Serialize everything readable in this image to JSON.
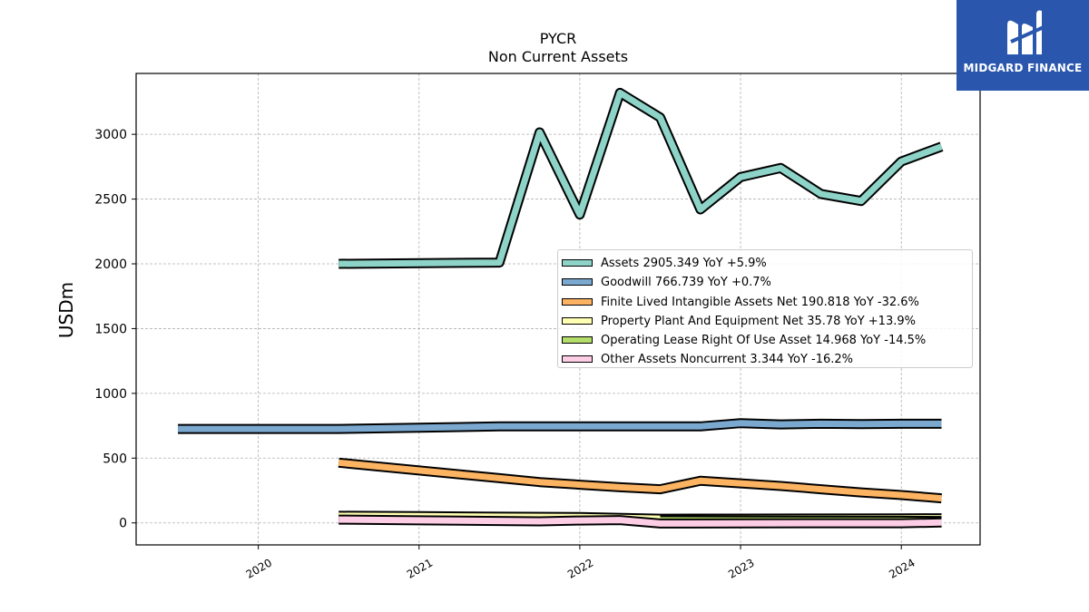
{
  "chart_data": {
    "type": "line",
    "title": "PYCR",
    "subtitle": "Non Current  Assets",
    "ylabel": "USDm",
    "xlabel": "",
    "ylim": [
      -170,
      3470
    ],
    "xlim": [
      2019.24,
      2024.49
    ],
    "yticks": [
      0,
      500,
      1000,
      1500,
      2000,
      2500,
      3000
    ],
    "xticks": [
      2020,
      2021,
      2022,
      2023,
      2024
    ],
    "grid": true,
    "legend_position": "center-right",
    "series": [
      {
        "name": "Assets",
        "legend": "Assets  2905.349 YoY +5.9%",
        "color": "#8dd3c7",
        "x": [
          2020.5,
          2021.5,
          2021.75,
          2022.0,
          2022.25,
          2022.5,
          2022.75,
          2023.0,
          2023.25,
          2023.5,
          2023.75,
          2024.0,
          2024.25
        ],
        "y": [
          2000,
          2010,
          3015,
          2380,
          3320,
          3130,
          2420,
          2670,
          2740,
          2540,
          2485,
          2790,
          2905
        ]
      },
      {
        "name": "Goodwill",
        "legend": "Goodwill  766.739 YoY +0.7%",
        "color": "#7ba8cf",
        "x": [
          2019.5,
          2020.5,
          2021.0,
          2021.5,
          2022.0,
          2022.5,
          2022.75,
          2023.0,
          2023.25,
          2023.5,
          2023.75,
          2024.0,
          2024.25
        ],
        "y": [
          725,
          725,
          735,
          745,
          745,
          745,
          745,
          770,
          760,
          765,
          763,
          765,
          765
        ]
      },
      {
        "name": "Finite Lived Intangible Assets Net",
        "legend": "Finite Lived Intangible Assets Net  190.818 YoY -32.6%",
        "color": "#fdb462",
        "x": [
          2020.5,
          2021.0,
          2021.5,
          2021.75,
          2022.0,
          2022.25,
          2022.5,
          2022.75,
          2023.0,
          2023.25,
          2023.5,
          2023.75,
          2024.0,
          2024.25
        ],
        "y": [
          465,
          405,
          345,
          315,
          295,
          275,
          260,
          325,
          305,
          285,
          260,
          235,
          215,
          190
        ]
      },
      {
        "name": "Property Plant And Equipment Net",
        "legend": "Property Plant And Equipment Net  35.78 YoY +13.9%",
        "color": "#ffffb3",
        "x": [
          2020.5,
          2021.0,
          2021.5,
          2022.0,
          2022.5,
          2023.0,
          2023.5,
          2024.0,
          2024.25
        ],
        "y": [
          55,
          52,
          48,
          45,
          32,
          33,
          34,
          35,
          36
        ]
      },
      {
        "name": "Operating Lease Right Of Use Asset",
        "legend": "Operating Lease Right Of Use Asset  14.968 YoY -14.5%",
        "color": "#b3de69",
        "x": [
          2022.5,
          2023.0,
          2023.5,
          2024.0,
          2024.25
        ],
        "y": [
          20,
          18,
          17,
          16,
          15
        ]
      },
      {
        "name": "Other Assets Noncurrent",
        "legend": "Other Assets Noncurrent  3.344 YoY -16.2%",
        "color": "#fccde5",
        "x": [
          2020.5,
          2021.0,
          2021.5,
          2021.75,
          2022.0,
          2022.25,
          2022.5,
          2023.0,
          2023.5,
          2024.0,
          2024.25
        ],
        "y": [
          25,
          20,
          15,
          12,
          18,
          22,
          -5,
          -4,
          -3,
          -3,
          3
        ]
      }
    ]
  },
  "logo": {
    "text": "MIDGARD FINANCE"
  }
}
